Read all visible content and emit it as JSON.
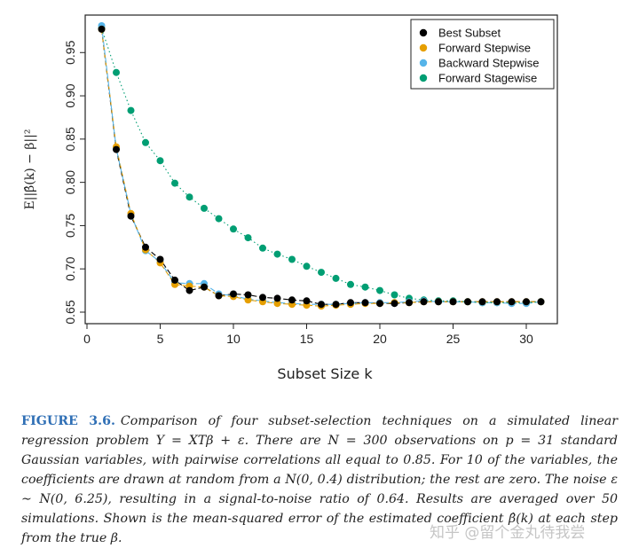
{
  "chart_data": {
    "type": "scatter",
    "xlabel": "Subset Size k",
    "ylabel": "E||β̂(k) − β||²",
    "xlim": [
      0,
      32
    ],
    "ylim": [
      0.65,
      0.98
    ],
    "xticks": [
      "0",
      "5",
      "10",
      "15",
      "20",
      "25",
      "30"
    ],
    "yticks": [
      "0.65",
      "0.70",
      "0.75",
      "0.80",
      "0.85",
      "0.90",
      "0.95"
    ],
    "grid": false,
    "legend_position": "top-right",
    "series": [
      {
        "name": "Best Subset",
        "color": "#000000",
        "x": [
          1,
          2,
          3,
          4,
          5,
          6,
          7,
          8,
          9,
          10,
          11,
          12,
          13,
          14,
          15,
          16,
          17,
          18,
          19,
          20,
          21,
          22,
          23,
          24,
          25,
          26,
          27,
          28,
          29,
          30,
          31
        ],
        "values": [
          0.977,
          0.838,
          0.761,
          0.725,
          0.711,
          0.687,
          0.675,
          0.679,
          0.669,
          0.671,
          0.67,
          0.667,
          0.666,
          0.664,
          0.663,
          0.659,
          0.659,
          0.661,
          0.661,
          0.66,
          0.66,
          0.661,
          0.662,
          0.662,
          0.662,
          0.662,
          0.662,
          0.662,
          0.662,
          0.662,
          0.662
        ]
      },
      {
        "name": "Forward Stepwise",
        "color": "#e69f00",
        "x": [
          1,
          2,
          3,
          4,
          5,
          6,
          7,
          8,
          9,
          10,
          11,
          12,
          13,
          14,
          15,
          16,
          17,
          18,
          19,
          20,
          21,
          22,
          23,
          24,
          25,
          26,
          27,
          28,
          29,
          30,
          31
        ],
        "values": [
          0.977,
          0.841,
          0.764,
          0.722,
          0.707,
          0.682,
          0.68,
          0.679,
          0.669,
          0.668,
          0.664,
          0.662,
          0.66,
          0.659,
          0.658,
          0.657,
          0.658,
          0.659,
          0.66,
          0.66,
          0.661,
          0.661,
          0.662,
          0.662,
          0.662,
          0.662,
          0.662,
          0.662,
          0.662,
          0.662,
          0.662
        ]
      },
      {
        "name": "Backward Stepwise",
        "color": "#56b4e9",
        "x": [
          1,
          2,
          3,
          4,
          5,
          6,
          7,
          8,
          9,
          10,
          11,
          12,
          13,
          14,
          15,
          16,
          17,
          18,
          19,
          20,
          21,
          22,
          23,
          24,
          25,
          26,
          27,
          28,
          29,
          30,
          31
        ],
        "values": [
          0.981,
          0.839,
          0.763,
          0.721,
          0.708,
          0.684,
          0.683,
          0.683,
          0.671,
          0.669,
          0.665,
          0.663,
          0.661,
          0.66,
          0.659,
          0.659,
          0.659,
          0.66,
          0.661,
          0.661,
          0.661,
          0.662,
          0.663,
          0.662,
          0.662,
          0.662,
          0.661,
          0.661,
          0.66,
          0.66,
          0.662
        ]
      },
      {
        "name": "Forward Stagewise",
        "color": "#009e73",
        "x": [
          1,
          2,
          3,
          4,
          5,
          6,
          7,
          8,
          9,
          10,
          11,
          12,
          13,
          14,
          15,
          16,
          17,
          18,
          19,
          20,
          21,
          22,
          23,
          24,
          25,
          26,
          27,
          28,
          29,
          30,
          31
        ],
        "values": [
          0.978,
          0.927,
          0.883,
          0.846,
          0.825,
          0.799,
          0.783,
          0.77,
          0.758,
          0.746,
          0.736,
          0.724,
          0.717,
          0.711,
          0.703,
          0.696,
          0.689,
          0.682,
          0.679,
          0.675,
          0.67,
          0.666,
          0.664,
          0.663,
          0.663,
          0.662,
          0.661,
          0.661,
          0.661,
          0.661,
          0.662
        ]
      }
    ]
  },
  "caption": {
    "label": "FIGURE 3.6.",
    "text": "Comparison of four subset-selection techniques on a simulated linear regression problem Y = XTβ + ε. There are N = 300 observations on p = 31 standard Gaussian variables, with pairwise correlations all equal to 0.85. For 10 of the variables, the coefficients are drawn at random from a N(0, 0.4) distribution; the rest are zero. The noise ε ∼ N(0, 6.25), resulting in a signal-to-noise ratio of 0.64. Results are averaged over 50 simulations. Shown is the mean-squared error of the estimated coefficient β̂(k) at each step from the true β."
  },
  "watermark": "知乎 @留个金丸待我尝"
}
